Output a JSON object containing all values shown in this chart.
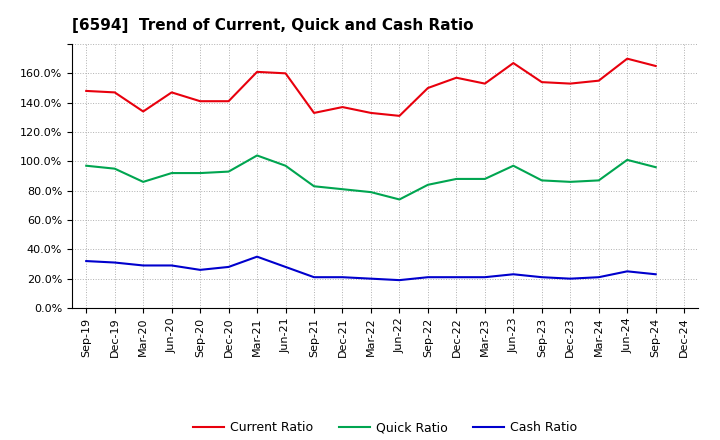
{
  "title": "[6594]  Trend of Current, Quick and Cash Ratio",
  "labels": [
    "Sep-19",
    "Dec-19",
    "Mar-20",
    "Jun-20",
    "Sep-20",
    "Dec-20",
    "Mar-21",
    "Jun-21",
    "Sep-21",
    "Dec-21",
    "Mar-22",
    "Jun-22",
    "Sep-22",
    "Dec-22",
    "Mar-23",
    "Jun-23",
    "Sep-23",
    "Dec-23",
    "Mar-24",
    "Jun-24",
    "Sep-24",
    "Dec-24"
  ],
  "current_ratio": [
    148,
    147,
    134,
    147,
    141,
    141,
    161,
    160,
    133,
    137,
    133,
    131,
    150,
    157,
    153,
    167,
    154,
    153,
    155,
    170,
    165,
    null
  ],
  "quick_ratio": [
    97,
    95,
    86,
    92,
    92,
    93,
    104,
    97,
    83,
    81,
    79,
    74,
    84,
    88,
    88,
    97,
    87,
    86,
    87,
    101,
    96,
    null
  ],
  "cash_ratio": [
    32,
    31,
    29,
    29,
    26,
    28,
    35,
    28,
    21,
    21,
    20,
    19,
    21,
    21,
    21,
    23,
    21,
    20,
    21,
    25,
    23,
    null
  ],
  "line_color_current": "#e8000d",
  "line_color_quick": "#00a550",
  "line_color_cash": "#0000cd",
  "ylim": [
    0,
    180
  ],
  "yticks": [
    0,
    20,
    40,
    60,
    80,
    100,
    120,
    140,
    160,
    180
  ],
  "ytick_labels": [
    "0.0%",
    "20.0%",
    "40.0%",
    "60.0%",
    "80.0%",
    "100.0%",
    "120.0%",
    "140.0%",
    "160.0%",
    ""
  ],
  "background_color": "#ffffff",
  "plot_bg_color": "#ffffff",
  "grid_color": "#b0b0b0",
  "legend_labels": [
    "Current Ratio",
    "Quick Ratio",
    "Cash Ratio"
  ],
  "title_fontsize": 11,
  "tick_fontsize": 8,
  "legend_fontsize": 9
}
